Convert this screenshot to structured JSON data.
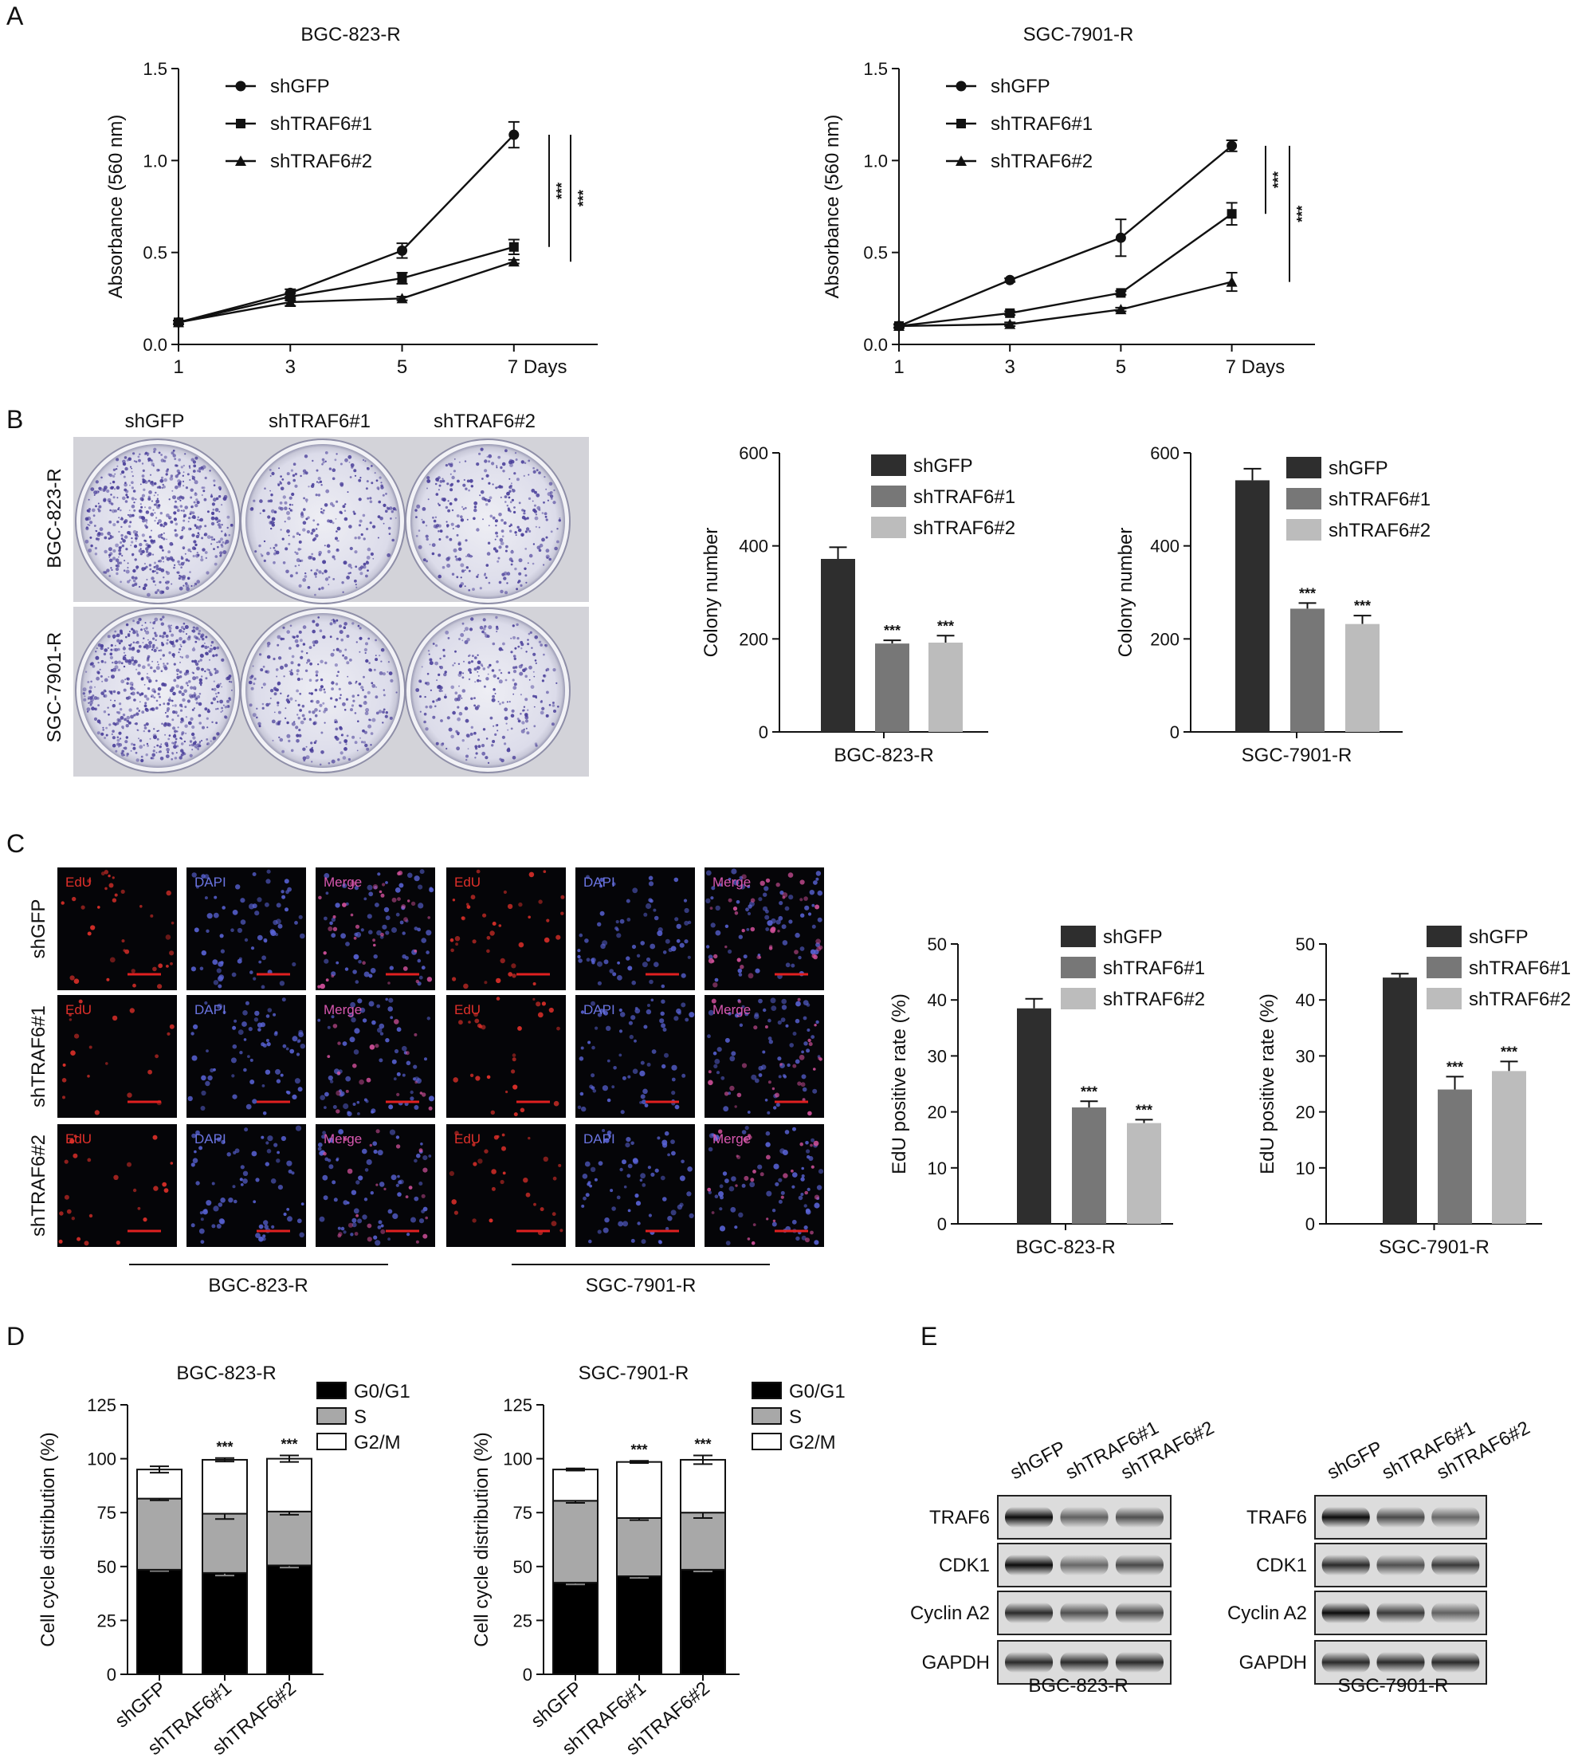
{
  "panel_letters": [
    "A",
    "B",
    "C",
    "D",
    "E"
  ],
  "chart_data": [
    {
      "id": "A1",
      "type": "line",
      "title": "BGC-823-R",
      "xlabel": "",
      "x_suffix": " Days",
      "ylabel": "Absorbance (560 nm)",
      "x": [
        1,
        3,
        5,
        7
      ],
      "xlim": [
        1,
        8.5
      ],
      "ylim": [
        0,
        1.5
      ],
      "yticks": [
        0.0,
        0.5,
        1.0,
        1.5
      ],
      "ytick_labels": [
        "0.0",
        "0.5",
        "1.0",
        "1.5"
      ],
      "series": [
        {
          "name": "shGFP",
          "marker": "circle",
          "values": [
            0.12,
            0.28,
            0.51,
            1.14
          ],
          "errors": [
            0.01,
            0.02,
            0.04,
            0.07
          ]
        },
        {
          "name": "shTRAF6#1",
          "marker": "square",
          "values": [
            0.12,
            0.26,
            0.36,
            0.53
          ],
          "errors": [
            0.01,
            0.02,
            0.03,
            0.04
          ]
        },
        {
          "name": "shTRAF6#2",
          "marker": "triangle",
          "values": [
            0.12,
            0.23,
            0.25,
            0.45
          ],
          "errors": [
            0.01,
            0.02,
            0.01,
            0.01
          ]
        }
      ],
      "significance": [
        {
          "label": "***",
          "from": 1.14,
          "to": 0.53
        },
        {
          "label": "***",
          "from": 1.14,
          "to": 0.45
        }
      ]
    },
    {
      "id": "A2",
      "type": "line",
      "title": "SGC-7901-R",
      "xlabel": "",
      "x_suffix": " Days",
      "ylabel": "Absorbance (560 nm)",
      "x": [
        1,
        3,
        5,
        7
      ],
      "xlim": [
        1,
        8.5
      ],
      "ylim": [
        0,
        1.5
      ],
      "yticks": [
        0.0,
        0.5,
        1.0,
        1.5
      ],
      "ytick_labels": [
        "0.0",
        "0.5",
        "1.0",
        "1.5"
      ],
      "series": [
        {
          "name": "shGFP",
          "marker": "circle",
          "values": [
            0.1,
            0.35,
            0.58,
            1.08
          ],
          "errors": [
            0.01,
            0.01,
            0.1,
            0.03
          ]
        },
        {
          "name": "shTRAF6#1",
          "marker": "square",
          "values": [
            0.1,
            0.17,
            0.28,
            0.71
          ],
          "errors": [
            0.01,
            0.01,
            0.01,
            0.06
          ]
        },
        {
          "name": "shTRAF6#2",
          "marker": "triangle",
          "values": [
            0.1,
            0.11,
            0.19,
            0.34
          ],
          "errors": [
            0.01,
            0.01,
            0.01,
            0.05
          ]
        }
      ],
      "significance": [
        {
          "label": "***",
          "from": 1.08,
          "to": 0.71
        },
        {
          "label": "***",
          "from": 1.08,
          "to": 0.34
        }
      ]
    },
    {
      "id": "B1",
      "type": "bar",
      "title": "",
      "xlabel": "BGC-823-R",
      "ylabel": "Colony number",
      "categories": [
        "shGFP",
        "shTRAF6#1",
        "shTRAF6#2"
      ],
      "values": [
        372,
        190,
        192
      ],
      "errors": [
        25,
        7,
        15
      ],
      "colors": [
        "#2e2e2e",
        "#777777",
        "#bcbcbc"
      ],
      "ylim": [
        0,
        600
      ],
      "yticks": [
        0,
        200,
        400,
        600
      ],
      "sig": [
        "",
        "***",
        "***"
      ]
    },
    {
      "id": "B2",
      "type": "bar",
      "title": "",
      "xlabel": "SGC-7901-R",
      "ylabel": "Colony number",
      "categories": [
        "shGFP",
        "shTRAF6#1",
        "shTRAF6#2"
      ],
      "values": [
        541,
        265,
        232
      ],
      "errors": [
        25,
        12,
        18
      ],
      "colors": [
        "#2e2e2e",
        "#777777",
        "#bcbcbc"
      ],
      "ylim": [
        0,
        600
      ],
      "yticks": [
        0,
        200,
        400,
        600
      ],
      "sig": [
        "",
        "***",
        "***"
      ]
    },
    {
      "id": "C1",
      "type": "bar",
      "title": "",
      "xlabel": "BGC-823-R",
      "ylabel": "EdU positive rate (%)",
      "categories": [
        "shGFP",
        "shTRAF6#1",
        "shTRAF6#2"
      ],
      "values": [
        38.5,
        20.8,
        18.0
      ],
      "errors": [
        1.7,
        1.1,
        0.6
      ],
      "colors": [
        "#2e2e2e",
        "#777777",
        "#bcbcbc"
      ],
      "ylim": [
        0,
        50
      ],
      "yticks": [
        0,
        10,
        20,
        30,
        40,
        50
      ],
      "sig": [
        "",
        "***",
        "***"
      ]
    },
    {
      "id": "C2",
      "type": "bar",
      "title": "",
      "xlabel": "SGC-7901-R",
      "ylabel": "EdU positive rate (%)",
      "categories": [
        "shGFP",
        "shTRAF6#1",
        "shTRAF6#2"
      ],
      "values": [
        44.0,
        24.0,
        27.3
      ],
      "errors": [
        0.7,
        2.3,
        1.7
      ],
      "colors": [
        "#2e2e2e",
        "#777777",
        "#bcbcbc"
      ],
      "ylim": [
        0,
        50
      ],
      "yticks": [
        0,
        10,
        20,
        30,
        40,
        50
      ],
      "sig": [
        "",
        "***",
        "***"
      ]
    },
    {
      "id": "D1",
      "type": "bar",
      "title": "BGC-823-R",
      "xlabel": "",
      "ylabel": "Cell cycle distribution (%)",
      "categories": [
        "shGFP",
        "shTRAF6#1",
        "shTRAF6#2"
      ],
      "ylim": [
        0,
        125
      ],
      "yticks": [
        0,
        25,
        50,
        75,
        100,
        125
      ],
      "stacked": [
        {
          "name": "G0/G1",
          "color": "#000000",
          "values": [
            48.5,
            47.0,
            50.5
          ],
          "errors": [
            0.6,
            1.2,
            1.0
          ]
        },
        {
          "name": "S",
          "color": "#a8a8a8",
          "values": [
            33.0,
            27.5,
            25.0
          ],
          "errors": [
            0.8,
            2.5,
            1.5
          ]
        },
        {
          "name": "G2/M",
          "color": "#ffffff",
          "values": [
            13.5,
            25.0,
            24.5
          ],
          "errors": [
            1.5,
            0.8,
            1.5
          ]
        }
      ],
      "sig": [
        "",
        "***",
        "***"
      ]
    },
    {
      "id": "D2",
      "type": "bar",
      "title": "SGC-7901-R",
      "xlabel": "",
      "ylabel": "Cell cycle distribution (%)",
      "categories": [
        "shGFP",
        "shTRAF6#1",
        "shTRAF6#2"
      ],
      "ylim": [
        0,
        125
      ],
      "yticks": [
        0,
        25,
        50,
        75,
        100,
        125
      ],
      "stacked": [
        {
          "name": "G0/G1",
          "color": "#000000",
          "values": [
            42.5,
            45.5,
            48.5
          ],
          "errors": [
            0.8,
            0.8,
            0.8
          ]
        },
        {
          "name": "S",
          "color": "#a8a8a8",
          "values": [
            38.0,
            27.0,
            26.5
          ],
          "errors": [
            1.0,
            1.0,
            2.5
          ]
        },
        {
          "name": "G2/M",
          "color": "#ffffff",
          "values": [
            14.5,
            26.0,
            24.5
          ],
          "errors": [
            0.5,
            0.5,
            2.0
          ]
        }
      ],
      "sig": [
        "",
        "***",
        "***"
      ]
    }
  ],
  "colony_plates": {
    "column_labels": [
      "shGFP",
      "shTRAF6#1",
      "shTRAF6#2"
    ],
    "row_labels": [
      "BGC-823-R",
      "SGC-7901-R"
    ],
    "colony_density": [
      [
        0.95,
        0.45,
        0.5
      ],
      [
        1.0,
        0.5,
        0.45
      ]
    ]
  },
  "edu_images": {
    "row_labels": [
      "shGFP",
      "shTRAF6#1",
      "shTRAF6#2"
    ],
    "channel_labels": [
      "EdU",
      "DAPI",
      "Merge"
    ],
    "group_labels": [
      "BGC-823-R",
      "SGC-7901-R"
    ]
  },
  "western_blot": {
    "lane_labels": [
      "shGFP",
      "shTRAF6#1",
      "shTRAF6#2"
    ],
    "proteins": [
      "TRAF6",
      "CDK1",
      "Cyclin A2",
      "GAPDH"
    ],
    "group_labels": [
      "BGC-823-R",
      "SGC-7901-R"
    ],
    "band_intensity": [
      [
        [
          1.0,
          0.45,
          0.55
        ],
        [
          1.0,
          0.4,
          0.6
        ],
        [
          0.8,
          0.55,
          0.6
        ],
        [
          0.8,
          0.8,
          0.8
        ]
      ],
      [
        [
          1.0,
          0.6,
          0.4
        ],
        [
          0.8,
          0.55,
          0.7
        ],
        [
          1.0,
          0.7,
          0.45
        ],
        [
          0.8,
          0.8,
          0.8
        ]
      ]
    ]
  },
  "colors": {
    "ink": "#111111",
    "plate_stain": "#4a3f9a",
    "edu_red": "#e0302a",
    "dapi_blue": "#5a64d8"
  }
}
